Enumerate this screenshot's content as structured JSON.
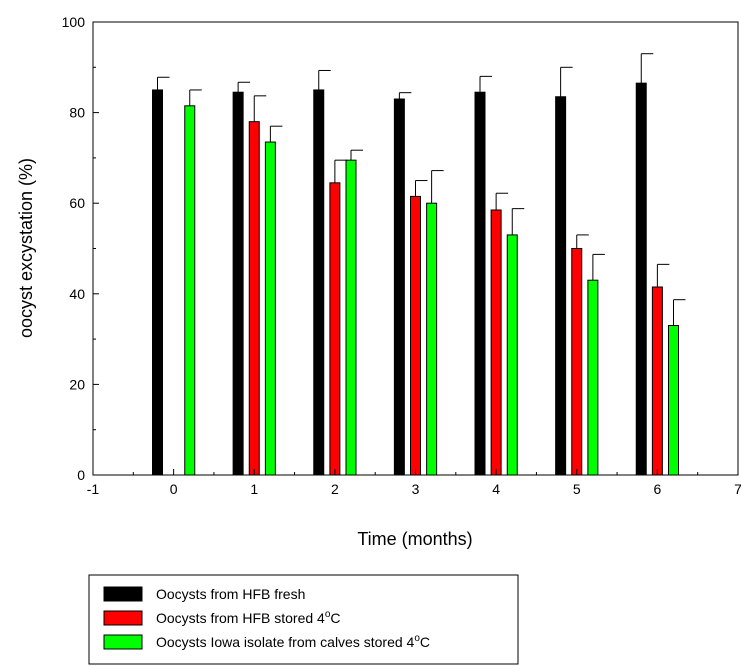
{
  "chart_data": {
    "type": "bar",
    "title": "",
    "xlabel": "Time (months)",
    "ylabel": "oocyst excystation (%)",
    "xlim": [
      -1,
      7
    ],
    "ylim": [
      0,
      100
    ],
    "xticks": [
      "-1",
      "0",
      "1",
      "2",
      "3",
      "4",
      "5",
      "6",
      "7"
    ],
    "yticks": [
      "0",
      "20",
      "40",
      "60",
      "80",
      "100"
    ],
    "grid": false,
    "error_bars": true,
    "legend_position": "bottom-left",
    "x": [
      0,
      1,
      2,
      3,
      4,
      5,
      6
    ],
    "series": [
      {
        "name": "Oocysts from HFB fresh",
        "color": "#000000",
        "values": [
          85,
          84.5,
          85,
          83,
          84.5,
          83.5,
          86.5
        ],
        "errors": [
          2.8,
          2.2,
          4.3,
          1.4,
          3.5,
          6.5,
          6.5
        ]
      },
      {
        "name": "Oocysts from HFB stored 4°C",
        "color": "#ff0000",
        "values": [
          null,
          78,
          64.5,
          61.5,
          58.5,
          50,
          41.5
        ],
        "errors": [
          null,
          5.7,
          5.0,
          3.5,
          3.7,
          3.0,
          5.0
        ]
      },
      {
        "name": "Oocysts Iowa isolate from calves stored 4°C",
        "color": "#00ff00",
        "values": [
          81.5,
          73.5,
          69.5,
          60,
          53,
          43,
          33
        ],
        "errors": [
          3.5,
          3.5,
          2.2,
          7.2,
          5.8,
          5.7,
          5.7
        ]
      }
    ]
  }
}
